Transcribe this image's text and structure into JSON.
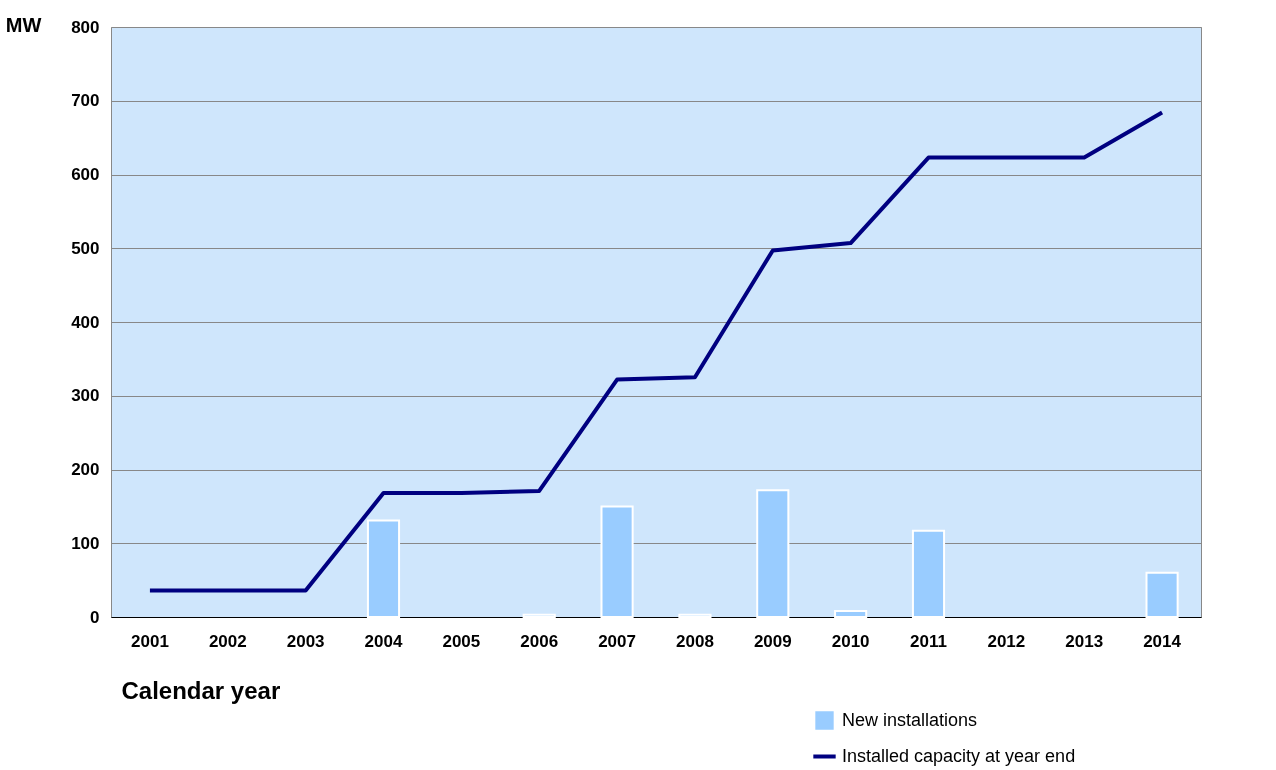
{
  "chart_data": {
    "type": "bar",
    "xlabel": "Calendar year",
    "ylabel": "MW",
    "categories": [
      "2001",
      "2002",
      "2003",
      "2004",
      "2005",
      "2006",
      "2007",
      "2008",
      "2009",
      "2010",
      "2011",
      "2012",
      "2013",
      "2014"
    ],
    "series": [
      {
        "name": "New installations",
        "color": "#99ccff",
        "values": [
          null,
          null,
          null,
          131,
          null,
          3,
          150,
          3,
          172,
          8,
          117,
          null,
          null,
          60
        ]
      },
      {
        "name": "Installed capacity at year end",
        "type": "line",
        "color": "#000080",
        "values": [
          36,
          36,
          36,
          168,
          168,
          171,
          322,
          325,
          497,
          507,
          623,
          623,
          623,
          684
        ]
      }
    ],
    "ylim": [
      0,
      800
    ],
    "yticks": [
      0,
      100,
      200,
      300,
      400,
      500,
      600,
      700,
      800
    ],
    "grid": "y",
    "legend": "bottom right",
    "marker": "none",
    "line_style": "solid"
  }
}
